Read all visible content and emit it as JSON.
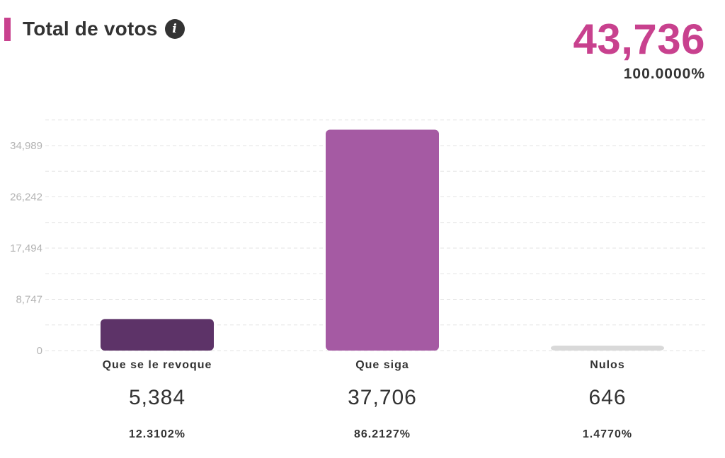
{
  "header": {
    "title": "Total de votos",
    "info_icon": "info-icon",
    "total": "43,736",
    "total_pct": "100.0000%",
    "total_color": "#c8418e",
    "accent_color": "#c8418e"
  },
  "categories": [
    {
      "label": "Que se le revoque",
      "value": "5,384",
      "pct": "12.3102%"
    },
    {
      "label": "Que siga",
      "value": "37,706",
      "pct": "86.2127%"
    },
    {
      "label": "Nulos",
      "value": "646",
      "pct": "1.4770%"
    }
  ],
  "chart_data": {
    "type": "bar",
    "categories": [
      "Que se le revoque",
      "Que siga",
      "Nulos"
    ],
    "values": [
      5384,
      37706,
      646
    ],
    "colors": [
      "#5d3368",
      "#a55aa3",
      "#d9d9d9"
    ],
    "yticks": [
      0,
      8747,
      17494,
      26242,
      34989
    ],
    "ytick_labels": [
      "0",
      "8,747",
      "17,494",
      "26,242",
      "34,989"
    ],
    "ylim": [
      0,
      39360
    ],
    "grid": true,
    "title": "",
    "xlabel": "",
    "ylabel": ""
  }
}
